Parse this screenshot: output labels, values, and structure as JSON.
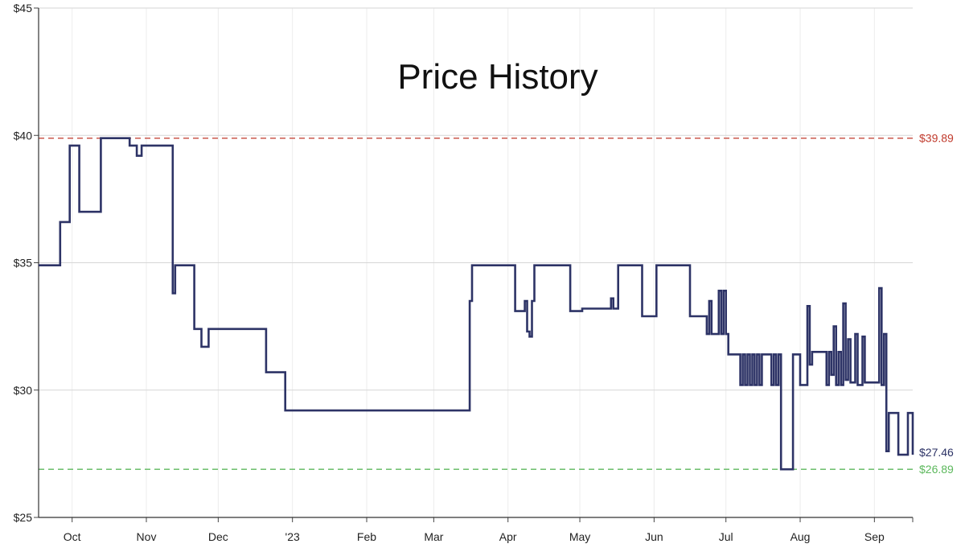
{
  "chart_data": {
    "type": "line",
    "title": "Price History",
    "xlabel": "",
    "ylabel": "",
    "ylim": [
      25,
      45
    ],
    "y_ticks": [
      "$25",
      "$30",
      "$35",
      "$40",
      "$45"
    ],
    "y_tick_values": [
      25,
      30,
      35,
      40,
      45
    ],
    "x_ticks": [
      "Oct",
      "Nov",
      "Dec",
      "'23",
      "Feb",
      "Mar",
      "Apr",
      "May",
      "Jun",
      "Jul",
      "Aug",
      "Sep"
    ],
    "x_tick_dates": [
      "2022-10-01",
      "2022-11-01",
      "2022-12-01",
      "2023-01-01",
      "2023-02-01",
      "2023-03-01",
      "2023-04-01",
      "2023-05-01",
      "2023-06-01",
      "2023-07-01",
      "2023-08-01",
      "2023-09-01"
    ],
    "xlim": [
      "2022-09-17",
      "2023-09-17"
    ],
    "grid": true,
    "step": true,
    "reference_lines": [
      {
        "label": "$39.89",
        "value": 39.89,
        "color": "#c0392b",
        "style": "dashed"
      },
      {
        "label": "$26.89",
        "value": 26.89,
        "color": "#5cb85c",
        "style": "dashed"
      }
    ],
    "current_label": {
      "label": "$27.46",
      "value": 27.46,
      "color": "#2d3366"
    },
    "series": [
      {
        "color": "#2d3366",
        "points": [
          [
            "2022-09-17",
            34.9
          ],
          [
            "2022-09-26",
            36.6
          ],
          [
            "2022-09-30",
            39.6
          ],
          [
            "2022-10-04",
            37.0
          ],
          [
            "2022-10-13",
            39.89
          ],
          [
            "2022-10-25",
            39.6
          ],
          [
            "2022-10-28",
            39.2
          ],
          [
            "2022-10-30",
            39.6
          ],
          [
            "2022-11-12",
            33.8
          ],
          [
            "2022-11-13",
            34.9
          ],
          [
            "2022-11-21",
            32.4
          ],
          [
            "2022-11-24",
            31.7
          ],
          [
            "2022-11-27",
            32.4
          ],
          [
            "2022-12-21",
            30.7
          ],
          [
            "2022-12-29",
            29.2
          ],
          [
            "2023-03-16",
            33.5
          ],
          [
            "2023-03-17",
            34.9
          ],
          [
            "2023-04-04",
            33.1
          ],
          [
            "2023-04-08",
            33.5
          ],
          [
            "2023-04-09",
            32.3
          ],
          [
            "2023-04-10",
            32.1
          ],
          [
            "2023-04-11",
            33.5
          ],
          [
            "2023-04-12",
            34.9
          ],
          [
            "2023-04-27",
            33.1
          ],
          [
            "2023-05-02",
            33.2
          ],
          [
            "2023-05-14",
            33.6
          ],
          [
            "2023-05-15",
            33.2
          ],
          [
            "2023-05-17",
            34.9
          ],
          [
            "2023-05-27",
            32.9
          ],
          [
            "2023-06-02",
            34.9
          ],
          [
            "2023-06-16",
            32.9
          ],
          [
            "2023-06-23",
            32.2
          ],
          [
            "2023-06-24",
            33.5
          ],
          [
            "2023-06-25",
            32.2
          ],
          [
            "2023-06-28",
            33.9
          ],
          [
            "2023-06-29",
            32.2
          ],
          [
            "2023-06-30",
            33.9
          ],
          [
            "2023-07-01",
            32.2
          ],
          [
            "2023-07-02",
            31.4
          ],
          [
            "2023-07-07",
            30.2
          ],
          [
            "2023-07-08",
            31.4
          ],
          [
            "2023-07-09",
            30.2
          ],
          [
            "2023-07-10",
            31.4
          ],
          [
            "2023-07-11",
            30.2
          ],
          [
            "2023-07-12",
            31.4
          ],
          [
            "2023-07-13",
            30.2
          ],
          [
            "2023-07-14",
            31.4
          ],
          [
            "2023-07-15",
            30.2
          ],
          [
            "2023-07-16",
            31.4
          ],
          [
            "2023-07-20",
            30.2
          ],
          [
            "2023-07-21",
            31.4
          ],
          [
            "2023-07-22",
            30.2
          ],
          [
            "2023-07-23",
            31.4
          ],
          [
            "2023-07-24",
            26.89
          ],
          [
            "2023-07-29",
            31.4
          ],
          [
            "2023-08-01",
            30.2
          ],
          [
            "2023-08-04",
            33.3
          ],
          [
            "2023-08-05",
            31.0
          ],
          [
            "2023-08-06",
            31.5
          ],
          [
            "2023-08-12",
            30.2
          ],
          [
            "2023-08-13",
            31.5
          ],
          [
            "2023-08-14",
            30.6
          ],
          [
            "2023-08-15",
            32.5
          ],
          [
            "2023-08-16",
            30.2
          ],
          [
            "2023-08-17",
            31.5
          ],
          [
            "2023-08-18",
            30.2
          ],
          [
            "2023-08-19",
            33.4
          ],
          [
            "2023-08-20",
            30.4
          ],
          [
            "2023-08-21",
            32.0
          ],
          [
            "2023-08-22",
            30.3
          ],
          [
            "2023-08-24",
            32.2
          ],
          [
            "2023-08-25",
            30.2
          ],
          [
            "2023-08-27",
            32.1
          ],
          [
            "2023-08-28",
            30.3
          ],
          [
            "2023-09-03",
            34.0
          ],
          [
            "2023-09-04",
            30.2
          ],
          [
            "2023-09-05",
            32.2
          ],
          [
            "2023-09-06",
            27.6
          ],
          [
            "2023-09-07",
            29.1
          ],
          [
            "2023-09-11",
            27.46
          ],
          [
            "2023-09-15",
            29.1
          ],
          [
            "2023-09-17",
            27.46
          ]
        ]
      }
    ]
  }
}
